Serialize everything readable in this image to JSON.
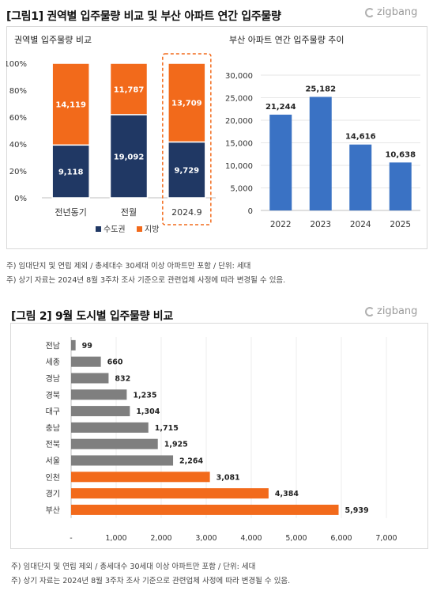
{
  "figure1": {
    "title": "[그림1] 권역별 입주물량 비교 및 부산 아파트 연간 입주물량",
    "brand": "zigbang",
    "notes": [
      "주) 임대단지 및 연립 제외 / 총세대수 30세대 이상 아파트만 포함 / 단위: 세대",
      "주) 상기 자료는 2024년 8월 3주차 조사 기준으로 관련업체 사정에 따라 변경될 수 있음."
    ]
  },
  "figure2": {
    "title": "[그림 2] 9월 도시별 입주물량 비교",
    "brand": "zigbang",
    "notes": [
      "주) 임대단지 및 연립 제외 / 총세대수 30세대 이상 아파트만 포함 / 단위: 세대",
      "주) 상기 자료는 2024년 8월 3주차 조사 기준으로 관련업체 사정에 따라 변경될 수 있음."
    ]
  },
  "chart_data": [
    {
      "type": "bar",
      "stacked": "percent",
      "title": "권역별 입주물량 비교",
      "categories": [
        "전년동기",
        "전월",
        "2024.9"
      ],
      "highlight": "2024.9",
      "y_ticks": [
        "0%",
        "20%",
        "40%",
        "60%",
        "80%",
        "100%"
      ],
      "ylim": [
        0,
        100
      ],
      "series": [
        {
          "name": "수도권",
          "color": "#203864",
          "values": [
            9118,
            19092,
            9729
          ]
        },
        {
          "name": "지방",
          "color": "#f26a1b",
          "values": [
            14119,
            11787,
            13709
          ]
        }
      ],
      "legend_position": "bottom"
    },
    {
      "type": "bar",
      "title": "부산 아파트 연간 입주물량 추이",
      "categories": [
        "2022",
        "2023",
        "2024",
        "2025"
      ],
      "values": [
        21244,
        25182,
        14616,
        10638
      ],
      "labels": [
        "21,244",
        "25,182",
        "14,616",
        "10,638"
      ],
      "color": "#3a72c4",
      "ylim": [
        0,
        30000
      ],
      "y_ticks": [
        "0",
        "5,000",
        "10,000",
        "15,000",
        "20,000",
        "25,000",
        "30,000"
      ],
      "grid": true
    },
    {
      "type": "bar",
      "orientation": "horizontal",
      "categories": [
        "전남",
        "세종",
        "경남",
        "경북",
        "대구",
        "충남",
        "전북",
        "서울",
        "인천",
        "경기",
        "부산"
      ],
      "values": [
        99,
        660,
        832,
        1235,
        1304,
        1715,
        1925,
        2264,
        3081,
        4384,
        5939
      ],
      "labels": [
        "99",
        "660",
        "832",
        "1,235",
        "1,304",
        "1,715",
        "1,925",
        "2,264",
        "3,081",
        "4,384",
        "5,939"
      ],
      "colors": [
        "#7f7f7f",
        "#7f7f7f",
        "#7f7f7f",
        "#7f7f7f",
        "#7f7f7f",
        "#7f7f7f",
        "#7f7f7f",
        "#7f7f7f",
        "#f26a1b",
        "#f26a1b",
        "#f26a1b"
      ],
      "xlim": [
        0,
        7000
      ],
      "x_ticks": [
        "-",
        "1,000",
        "2,000",
        "3,000",
        "4,000",
        "5,000",
        "6,000",
        "7,000"
      ],
      "grid": true
    }
  ]
}
